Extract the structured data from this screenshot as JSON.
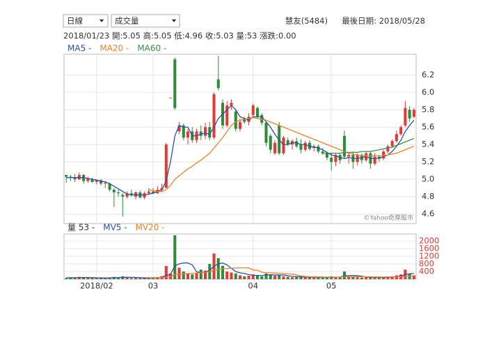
{
  "chart_data": {
    "type": "candlestick",
    "interval": "日線",
    "indicator": "成交量",
    "stock": "慧友(5484)",
    "last_date": "最後日期: 2018/05/28",
    "info": "2018/01/23 開:5.05 高:5.05 低:4.96 收:5.03 量:53 漲跌:0.00",
    "watermark": "©Yahoo奇摩股市",
    "up_color": "#e53935",
    "down_color": "#2e8b3a",
    "grid": true,
    "categories": [
      null,
      null,
      null,
      null,
      null,
      null,
      null,
      "2018/02",
      null,
      null,
      null,
      null,
      null,
      null,
      null,
      null,
      null,
      null,
      null,
      null,
      "03",
      null,
      null,
      null,
      null,
      null,
      null,
      null,
      null,
      null,
      null,
      null,
      null,
      null,
      null,
      null,
      null,
      null,
      null,
      null,
      null,
      null,
      null,
      "04",
      null,
      null,
      null,
      null,
      null,
      null,
      null,
      null,
      null,
      null,
      null,
      null,
      null,
      null,
      null,
      null,
      null,
      "05",
      null,
      null,
      null,
      null,
      null,
      null,
      null,
      null,
      null,
      null,
      null,
      null,
      null,
      null,
      null,
      null,
      null,
      null,
      null
    ],
    "open": [
      5.05,
      5.03,
      5.02,
      5.0,
      5.05,
      4.98,
      5.0,
      4.97,
      4.99,
      4.95,
      4.95,
      4.88,
      4.85,
      4.82,
      4.8,
      4.84,
      4.8,
      4.85,
      4.79,
      4.84,
      4.86,
      4.84,
      4.88,
      4.9,
      5.94,
      6.38,
      5.55,
      5.62,
      5.48,
      5.55,
      5.45,
      5.55,
      5.5,
      5.6,
      5.48,
      6.15,
      5.88,
      5.62,
      5.85,
      5.78,
      5.58,
      5.7,
      5.66,
      5.74,
      5.82,
      5.74,
      5.65,
      5.5,
      5.3,
      5.62,
      5.3,
      5.45,
      5.4,
      5.44,
      5.4,
      5.34,
      5.42,
      5.36,
      5.38,
      5.32,
      5.3,
      5.25,
      5.2,
      5.28,
      5.5,
      5.26,
      5.28,
      5.2,
      5.28,
      5.22,
      5.3,
      5.18,
      5.26,
      5.24,
      5.32,
      5.38,
      5.44,
      5.52,
      5.62,
      5.8,
      5.72
    ],
    "high": [
      5.05,
      5.05,
      5.06,
      5.08,
      5.06,
      5.03,
      5.02,
      5.0,
      5.0,
      4.98,
      4.96,
      4.9,
      4.88,
      4.84,
      4.86,
      4.88,
      4.86,
      4.87,
      4.86,
      4.9,
      4.9,
      4.92,
      4.95,
      5.42,
      5.94,
      6.4,
      5.66,
      5.64,
      5.58,
      5.6,
      5.58,
      5.62,
      5.65,
      5.66,
      6.0,
      6.42,
      5.92,
      5.9,
      5.92,
      5.8,
      5.7,
      5.72,
      5.76,
      5.87,
      5.84,
      5.76,
      5.66,
      5.52,
      5.45,
      5.66,
      5.5,
      5.48,
      5.46,
      5.48,
      5.46,
      5.44,
      5.45,
      5.4,
      5.4,
      5.36,
      5.32,
      5.3,
      5.3,
      5.3,
      5.56,
      5.3,
      5.32,
      5.3,
      5.3,
      5.32,
      5.32,
      5.3,
      5.28,
      5.34,
      5.4,
      5.46,
      5.56,
      5.62,
      5.9,
      5.84,
      5.82
    ],
    "low": [
      4.96,
      4.98,
      4.97,
      4.99,
      4.95,
      4.96,
      4.96,
      4.94,
      4.93,
      4.9,
      4.86,
      4.68,
      4.8,
      4.57,
      4.78,
      4.8,
      4.77,
      4.78,
      4.77,
      4.82,
      4.83,
      4.83,
      4.85,
      4.9,
      5.94,
      5.8,
      5.52,
      5.45,
      5.4,
      5.42,
      5.42,
      5.45,
      5.46,
      5.45,
      5.46,
      6.02,
      5.58,
      5.6,
      5.8,
      5.55,
      5.55,
      5.64,
      5.62,
      5.72,
      5.7,
      5.62,
      5.38,
      5.3,
      5.28,
      5.28,
      5.28,
      5.38,
      5.34,
      5.36,
      5.3,
      5.32,
      5.33,
      5.32,
      5.3,
      5.28,
      5.22,
      5.1,
      5.15,
      5.18,
      5.24,
      5.18,
      5.12,
      5.16,
      5.18,
      5.2,
      5.12,
      5.16,
      5.2,
      5.22,
      5.3,
      5.36,
      5.42,
      5.5,
      5.6,
      5.66,
      5.7
    ],
    "close": [
      5.03,
      5.02,
      5.0,
      5.05,
      4.98,
      5.01,
      4.97,
      4.99,
      4.95,
      4.96,
      4.88,
      4.85,
      4.84,
      4.8,
      4.84,
      4.82,
      4.85,
      4.79,
      4.84,
      4.86,
      4.84,
      4.88,
      4.9,
      5.4,
      5.94,
      5.82,
      5.62,
      5.48,
      5.55,
      5.45,
      5.55,
      5.5,
      5.6,
      5.48,
      5.98,
      6.05,
      5.62,
      5.85,
      5.88,
      5.58,
      5.66,
      5.66,
      5.72,
      5.85,
      5.72,
      5.65,
      5.42,
      5.34,
      5.42,
      5.3,
      5.48,
      5.4,
      5.44,
      5.38,
      5.34,
      5.42,
      5.35,
      5.38,
      5.32,
      5.3,
      5.25,
      5.2,
      5.28,
      5.22,
      5.26,
      5.28,
      5.2,
      5.28,
      5.22,
      5.3,
      5.18,
      5.26,
      5.24,
      5.32,
      5.38,
      5.44,
      5.52,
      5.6,
      5.82,
      5.7,
      5.8
    ],
    "ylim": [
      4.49,
      6.44
    ],
    "yticks": [
      4.6,
      4.8,
      {
        "value": 5,
        "label": "5.0"
      },
      5.2,
      5.4,
      5.6,
      5.8,
      {
        "value": 6,
        "label": "6.0"
      },
      6.2
    ],
    "series": [
      {
        "name": "MA5 -",
        "color": "#2c4fa8",
        "values": [
          5.02,
          5.02,
          5.02,
          5.02,
          5.02,
          5.01,
          5.0,
          4.99,
          4.98,
          4.97,
          4.95,
          4.92,
          4.89,
          4.86,
          4.83,
          4.82,
          4.82,
          4.82,
          4.82,
          4.83,
          4.84,
          4.86,
          4.88,
          4.98,
          5.2,
          5.5,
          5.62,
          5.6,
          5.6,
          5.5,
          5.5,
          5.52,
          5.53,
          5.52,
          5.6,
          5.7,
          5.75,
          5.8,
          5.85,
          5.8,
          5.72,
          5.7,
          5.68,
          5.72,
          5.72,
          5.72,
          5.66,
          5.6,
          5.52,
          5.45,
          5.4,
          5.4,
          5.42,
          5.42,
          5.4,
          5.4,
          5.38,
          5.37,
          5.36,
          5.34,
          5.31,
          5.28,
          5.27,
          5.25,
          5.24,
          5.25,
          5.24,
          5.24,
          5.25,
          5.26,
          5.24,
          5.24,
          5.24,
          5.26,
          5.28,
          5.32,
          5.38,
          5.45,
          5.55,
          5.62,
          5.68
        ]
      },
      {
        "name": "MA20 -",
        "color": "#f0802a",
        "values": [
          null,
          null,
          null,
          null,
          null,
          null,
          null,
          null,
          null,
          null,
          null,
          null,
          null,
          null,
          null,
          null,
          null,
          null,
          null,
          4.88,
          4.87,
          4.86,
          4.86,
          4.88,
          4.93,
          5.0,
          5.04,
          5.08,
          5.12,
          5.15,
          5.19,
          5.22,
          5.26,
          5.3,
          5.36,
          5.42,
          5.48,
          5.55,
          5.62,
          5.66,
          5.68,
          5.69,
          5.7,
          5.71,
          5.7,
          5.69,
          5.68,
          5.66,
          5.64,
          5.62,
          5.6,
          5.58,
          5.56,
          5.54,
          5.52,
          5.5,
          5.48,
          5.46,
          5.44,
          5.42,
          5.4,
          5.38,
          5.36,
          5.34,
          5.32,
          5.3,
          5.29,
          5.28,
          5.27,
          5.27,
          5.27,
          5.27,
          5.27,
          5.27,
          5.28,
          5.29,
          5.3,
          5.32,
          5.34,
          5.36,
          5.38
        ]
      },
      {
        "name": "MA60 -",
        "color": "#3d8c4a",
        "values": [
          null,
          null,
          null,
          null,
          null,
          null,
          null,
          null,
          null,
          null,
          null,
          null,
          null,
          null,
          null,
          null,
          null,
          null,
          null,
          null,
          null,
          null,
          null,
          null,
          null,
          null,
          null,
          null,
          null,
          null,
          null,
          null,
          null,
          null,
          null,
          null,
          null,
          null,
          null,
          null,
          null,
          null,
          null,
          null,
          null,
          null,
          null,
          null,
          null,
          null,
          null,
          null,
          null,
          null,
          null,
          null,
          null,
          null,
          null,
          5.3,
          5.3,
          5.3,
          5.3,
          5.3,
          5.31,
          5.31,
          5.31,
          5.31,
          5.32,
          5.32,
          5.32,
          5.33,
          5.34,
          5.35,
          5.36,
          5.37,
          5.39,
          5.41,
          5.43,
          5.45,
          5.47
        ]
      }
    ],
    "volume": {
      "type": "bar",
      "name": "量 53 -",
      "values": [
        53,
        60,
        80,
        120,
        90,
        70,
        60,
        50,
        60,
        70,
        90,
        120,
        60,
        150,
        80,
        60,
        70,
        50,
        60,
        90,
        70,
        110,
        160,
        690,
        300,
        2300,
        600,
        400,
        300,
        250,
        300,
        500,
        450,
        800,
        1340,
        1100,
        700,
        400,
        350,
        300,
        200,
        150,
        180,
        250,
        200,
        150,
        300,
        250,
        180,
        200,
        150,
        120,
        100,
        110,
        130,
        90,
        100,
        80,
        90,
        70,
        100,
        150,
        120,
        100,
        400,
        120,
        150,
        100,
        80,
        90,
        110,
        80,
        70,
        90,
        120,
        150,
        200,
        250,
        500,
        300,
        200
      ],
      "ylim": [
        0,
        2364
      ],
      "yticks": [
        400,
        800,
        1200,
        1600,
        2000
      ],
      "series": [
        {
          "name": "MV5 -",
          "color": "#2c4fa8",
          "values": [
            70,
            75,
            78,
            80,
            85,
            85,
            80,
            70,
            65,
            62,
            66,
            80,
            80,
            95,
            100,
            95,
            90,
            80,
            65,
            65,
            70,
            75,
            95,
            200,
            250,
            700,
            800,
            850,
            850,
            750,
            380,
            350,
            360,
            460,
            680,
            800,
            850,
            750,
            570,
            400,
            330,
            300,
            240,
            200,
            200,
            190,
            220,
            230,
            220,
            220,
            220,
            180,
            150,
            135,
            125,
            110,
            105,
            100,
            100,
            90,
            90,
            100,
            105,
            110,
            180,
            180,
            200,
            180,
            160,
            110,
            100,
            95,
            90,
            90,
            95,
            110,
            130,
            160,
            240,
            280,
            300
          ]
        },
        {
          "name": "MV20 -",
          "color": "#f0802a",
          "values": [
            null,
            null,
            null,
            null,
            null,
            null,
            null,
            null,
            null,
            null,
            null,
            null,
            null,
            null,
            null,
            null,
            null,
            null,
            null,
            80,
            80,
            82,
            85,
            115,
            127,
            237,
            262,
            280,
            295,
            305,
            317,
            340,
            360,
            397,
            460,
            510,
            540,
            560,
            575,
            585,
            590,
            590,
            595,
            480,
            475,
            360,
            340,
            330,
            320,
            315,
            300,
            280,
            270,
            230,
            170,
            140,
            130,
            125,
            120,
            115,
            110,
            110,
            110,
            110,
            125,
            125,
            125,
            125,
            125,
            125,
            120,
            118,
            116,
            115,
            118,
            120,
            125,
            130,
            145,
            155,
            160
          ]
        }
      ]
    }
  }
}
